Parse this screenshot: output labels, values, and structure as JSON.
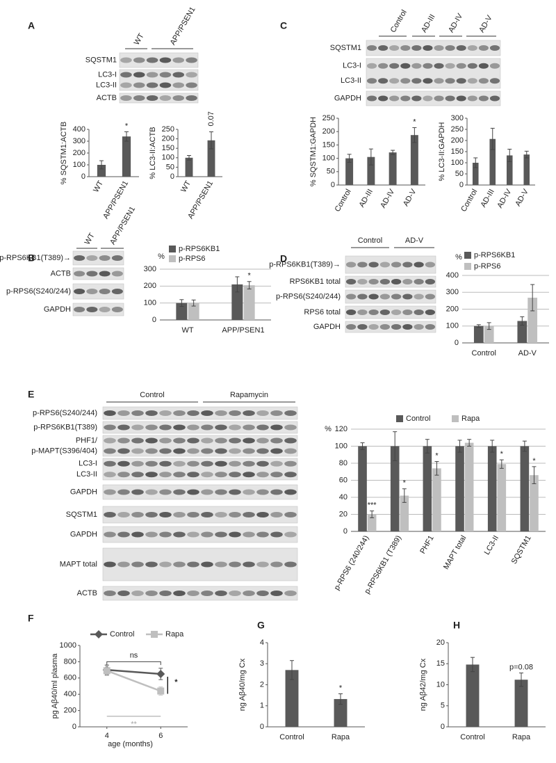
{
  "figure": {
    "panels": [
      "A",
      "B",
      "C",
      "D",
      "E",
      "F",
      "G",
      "H"
    ],
    "blots": [
      {
        "groups": [
          "WT",
          "APP/PSEN1"
        ],
        "rows": [
          [
            "SQSTM1"
          ],
          [
            "LC3-I",
            "LC3-II"
          ],
          [
            "ACTB"
          ]
        ]
      },
      {
        "groups": [
          "WT",
          "APP/PSEN1"
        ],
        "rows": [
          [
            "p-RPS6KB1(T389)→"
          ],
          [
            "ACTB"
          ],
          [
            "p-RPS6(S240/244)"
          ],
          [
            "GAPDH"
          ]
        ]
      },
      {
        "groups": [
          "Control",
          "AD-III",
          "AD-IV",
          "AD-V"
        ],
        "rows": [
          [
            "SQSTM1"
          ],
          [
            "LC3-I",
            "LC3-II"
          ],
          [
            "GAPDH"
          ]
        ]
      },
      {
        "groups": [
          "Control",
          "AD-V"
        ],
        "rows": [
          [
            "p-RPS6KB1(T389)→"
          ],
          [
            "RPS6KB1 total"
          ],
          [
            "p-RPS6(S240/244)"
          ],
          [
            "RPS6 total"
          ],
          [
            "GAPDH"
          ]
        ]
      },
      {
        "groups": [
          "Control",
          "Rapamycin"
        ],
        "rows": [
          [
            "p-RPS6(S240/244)"
          ],
          [
            "p-RPS6KB1(T389)"
          ],
          [
            "PHF1/",
            "p-MAPT(S396/404)"
          ],
          [
            "LC3-I",
            "LC3-II"
          ],
          [
            "GAPDH"
          ],
          [
            "SQSTM1"
          ],
          [
            "GAPDH"
          ],
          [
            "MAPT total"
          ],
          [
            "ACTB"
          ]
        ]
      }
    ]
  },
  "chart_data": [
    {
      "type": "bar",
      "ylabel": "% SQSTM1:ACTB",
      "categories": [
        "WT",
        "APP/PSEN1"
      ],
      "values": [
        100,
        340
      ],
      "errors": [
        35,
        40
      ],
      "annotations": [
        null,
        "*"
      ],
      "color": "#595959",
      "ylim": [
        0,
        400
      ],
      "yticks": [
        0,
        100,
        200,
        300,
        400
      ],
      "grid": false
    },
    {
      "type": "bar",
      "ylabel": "% LC3-II:ACTB",
      "categories": [
        "WT",
        "APP/PSEN1"
      ],
      "values": [
        100,
        192
      ],
      "errors": [
        12,
        45
      ],
      "annotations": [
        null,
        "0.07"
      ],
      "color": "#595959",
      "ylim": [
        0,
        250
      ],
      "yticks": [
        0,
        50,
        100,
        150,
        200,
        250
      ],
      "grid": false
    },
    {
      "type": "bar",
      "ylabel": "%",
      "categories": [
        "WT",
        "APP/PSEN1"
      ],
      "legend": "top-left",
      "series": [
        {
          "name": "p-RPS6KB1",
          "color": "#595959",
          "values": [
            100,
            210
          ],
          "errors": [
            20,
            45
          ]
        },
        {
          "name": "p-RPS6",
          "color": "#bfbfbf",
          "values": [
            100,
            205
          ],
          "errors": [
            18,
            22
          ],
          "annotations": [
            null,
            "*"
          ]
        }
      ],
      "ylim": [
        0,
        300
      ],
      "yticks": [
        0,
        100,
        200,
        300
      ],
      "grid": true
    },
    {
      "type": "bar",
      "ylabel": "% SQSTM1:GAPDH",
      "categories": [
        "Control",
        "AD-III",
        "AD-IV",
        "AD-V"
      ],
      "values": [
        100,
        105,
        122,
        187
      ],
      "errors": [
        15,
        30,
        8,
        28
      ],
      "annotations": [
        null,
        null,
        null,
        "*"
      ],
      "color": "#595959",
      "ylim": [
        0,
        250
      ],
      "yticks": [
        0,
        50,
        100,
        150,
        200,
        250
      ],
      "grid": false
    },
    {
      "type": "bar",
      "ylabel": "% LC3-II:GAPDH",
      "categories": [
        "Control",
        "AD-III",
        "AD-IV",
        "AD-V"
      ],
      "values": [
        100,
        207,
        133,
        137
      ],
      "errors": [
        22,
        48,
        28,
        15
      ],
      "color": "#595959",
      "ylim": [
        0,
        300
      ],
      "yticks": [
        0,
        50,
        100,
        150,
        200,
        250,
        300
      ],
      "grid": false
    },
    {
      "type": "bar",
      "ylabel": "%",
      "categories": [
        "Control",
        "AD-V"
      ],
      "legend": "top-left",
      "series": [
        {
          "name": "p-RPS6KB1",
          "color": "#595959",
          "values": [
            100,
            130
          ],
          "errors": [
            8,
            25
          ]
        },
        {
          "name": "p-RPS6",
          "color": "#bfbfbf",
          "values": [
            100,
            268
          ],
          "errors": [
            20,
            78
          ]
        }
      ],
      "ylim": [
        0,
        400
      ],
      "yticks": [
        0,
        100,
        200,
        300,
        400
      ],
      "grid": true
    },
    {
      "type": "bar",
      "ylabel": "%",
      "categories": [
        "p-RPS6 (240/244)",
        "p-RPS6KB1 (T389)",
        "PHF1",
        "MAPT total",
        "LC3-II",
        "SQSTM1"
      ],
      "legend": "top",
      "series": [
        {
          "name": "Control",
          "color": "#595959",
          "values": [
            100,
            100,
            100,
            100,
            100,
            100
          ],
          "errors": [
            4,
            17,
            8,
            7,
            7,
            6
          ]
        },
        {
          "name": "Rapa",
          "color": "#bfbfbf",
          "values": [
            20,
            42,
            74,
            104,
            79,
            66
          ],
          "errors": [
            4,
            8,
            8,
            4,
            5,
            10
          ],
          "annotations": [
            "***",
            "*",
            "*",
            null,
            "*",
            "*"
          ]
        }
      ],
      "ylim": [
        0,
        120
      ],
      "yticks": [
        0,
        20,
        40,
        60,
        80,
        100,
        120
      ],
      "grid": true
    },
    {
      "type": "line",
      "ylabel": "pg Aβ40/ml plasma",
      "xlabel": "age (months)",
      "x": [
        4,
        6
      ],
      "legend": "top",
      "series": [
        {
          "name": "Control",
          "color": "#595959",
          "marker": "diamond",
          "values": [
            700,
            650
          ],
          "errors": [
            60,
            70
          ]
        },
        {
          "name": "Rapa",
          "color": "#bfbfbf",
          "marker": "square",
          "values": [
            690,
            440
          ],
          "errors": [
            60,
            50
          ]
        }
      ],
      "annotations": [
        "ns",
        "*",
        "**"
      ],
      "xlim": [
        3,
        7
      ],
      "xticks": [
        4,
        6
      ],
      "ylim": [
        0,
        1000
      ],
      "yticks": [
        0,
        200,
        400,
        600,
        800,
        1000
      ],
      "grid": false
    },
    {
      "type": "bar",
      "ylabel": "ng Aβ40/mg Cx",
      "categories": [
        "Control",
        "Rapa"
      ],
      "values": [
        2.7,
        1.32
      ],
      "errors": [
        0.45,
        0.25
      ],
      "annotations": [
        null,
        "*"
      ],
      "color": "#595959",
      "ylim": [
        0,
        4
      ],
      "yticks": [
        0,
        1,
        2,
        3,
        4
      ],
      "grid": false
    },
    {
      "type": "bar",
      "ylabel": "ng Aβ42/mg Cx",
      "categories": [
        "Control",
        "Rapa"
      ],
      "values": [
        14.8,
        11.2
      ],
      "errors": [
        1.7,
        1.6
      ],
      "annotations": [
        null,
        "p=0.08"
      ],
      "color": "#595959",
      "ylim": [
        0,
        20
      ],
      "yticks": [
        0,
        5,
        10,
        15,
        20
      ],
      "grid": false
    }
  ]
}
